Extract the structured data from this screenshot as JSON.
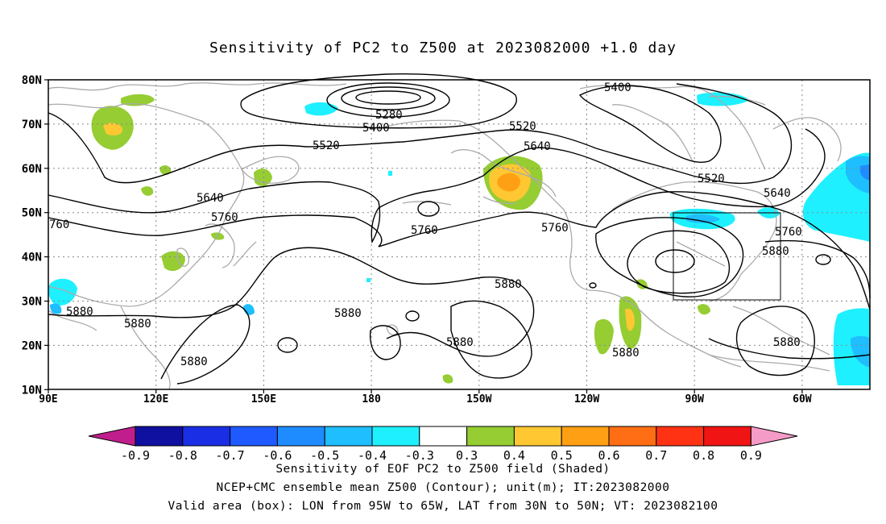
{
  "title": "Sensitivity of PC2 to Z500 at 2023082000 +1.0 day",
  "axes": {
    "lat_ticks": [
      "80N",
      "70N",
      "60N",
      "50N",
      "40N",
      "30N",
      "20N",
      "10N"
    ],
    "lon_ticks": [
      "90E",
      "120E",
      "150E",
      "180",
      "150W",
      "120W",
      "90W",
      "60W"
    ]
  },
  "contour_labels": {
    "5280": "5280",
    "5400": "5400",
    "5520": "5520",
    "5640": "5640",
    "5760": "5760",
    "5760_cut": "760",
    "5880": "5880"
  },
  "colorbar": {
    "labels": [
      "-0.9",
      "-0.8",
      "-0.7",
      "-0.6",
      "-0.5",
      "-0.4",
      "-0.3",
      "0.3",
      "0.4",
      "0.5",
      "0.6",
      "0.7",
      "0.8",
      "0.9"
    ],
    "colors": {
      "left_arrow": "#c01e8c",
      "bins": [
        "#1010a0",
        "#1a2ee6",
        "#1e5aff",
        "#1e8cff",
        "#1ebeff",
        "#1ef0ff",
        "#ffffff",
        "#96cd32",
        "#ffc832",
        "#ffa014",
        "#ff6e14",
        "#ff3214",
        "#f01414"
      ],
      "right_arrow": "#f59bc8"
    }
  },
  "valid_box": {
    "lon_from": "95W",
    "lon_to": "65W",
    "lat_from": "30N",
    "lat_to": "50N"
  },
  "captions": {
    "line1": "Sensitivity of EOF PC2 to Z500 field (Shaded)",
    "line2": "NCEP+CMC ensemble mean Z500 (Contour); unit(m); IT:2023082000",
    "line3": "Valid area (box): LON from 95W to 65W, LAT from 30N to 50N; VT: 2023082100"
  },
  "colors": {
    "contour": "#000000",
    "coast": "#aaaaaa",
    "grid": "#888888",
    "positive_green": "#96cd32",
    "positive_yellow": "#ffc832",
    "positive_orange": "#ffa014",
    "negative_cyan": "#1ef0ff",
    "negative_blue": "#1ebeff"
  }
}
